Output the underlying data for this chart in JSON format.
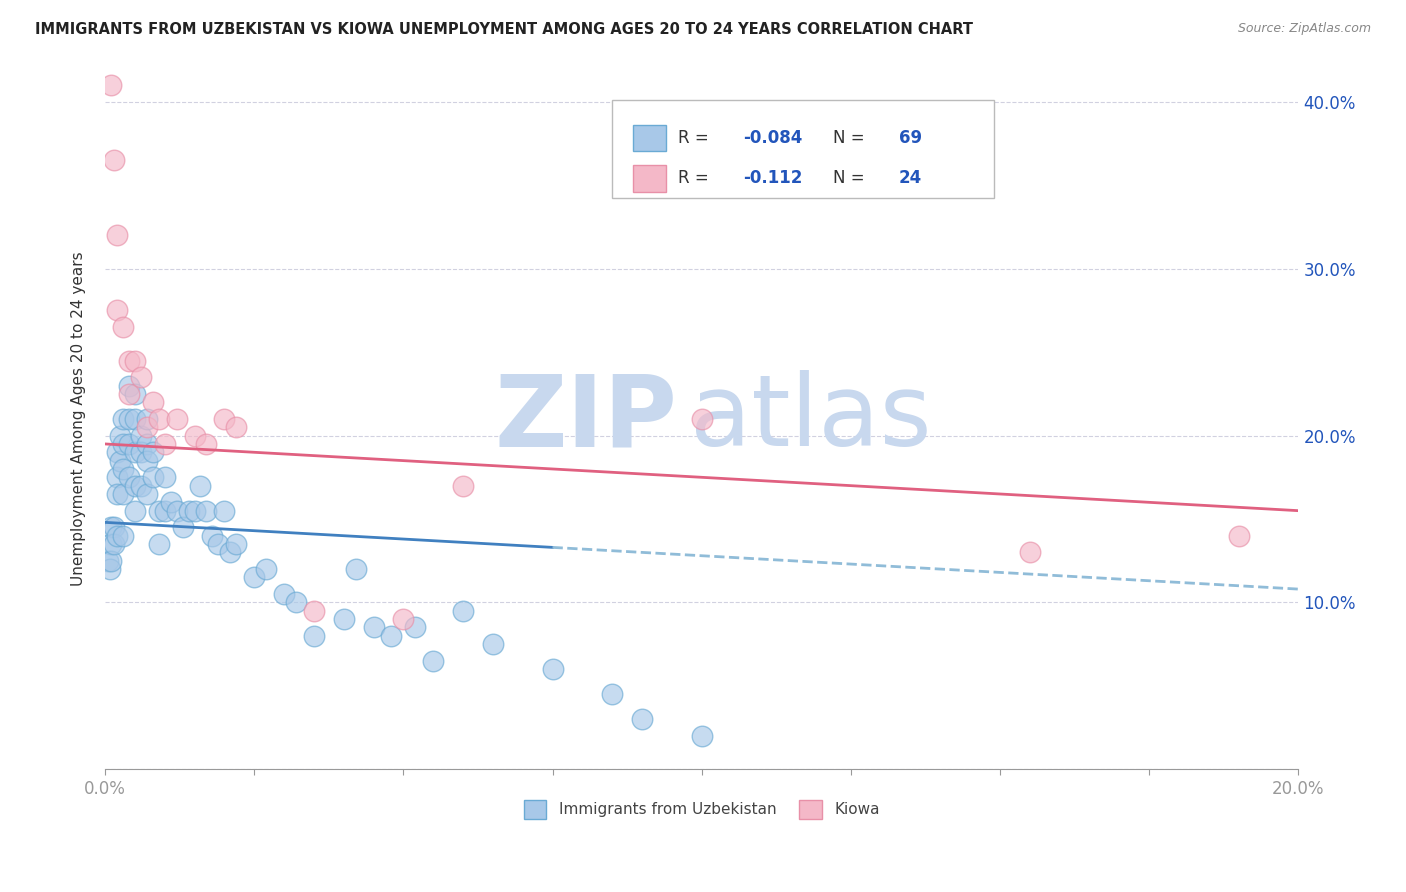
{
  "title": "IMMIGRANTS FROM UZBEKISTAN VS KIOWA UNEMPLOYMENT AMONG AGES 20 TO 24 YEARS CORRELATION CHART",
  "source": "Source: ZipAtlas.com",
  "ylabel": "Unemployment Among Ages 20 to 24 years",
  "xmin": 0.0,
  "xmax": 0.2,
  "ymin": 0.0,
  "ymax": 0.42,
  "yticks_right": [
    0.1,
    0.2,
    0.3,
    0.4
  ],
  "ytick_labels_right": [
    "10.0%",
    "20.0%",
    "30.0%",
    "40.0%"
  ],
  "series1_name": "Immigrants from Uzbekistan",
  "series1_color": "#a8c8e8",
  "series1_edge": "#6aaad4",
  "series1_R": -0.084,
  "series1_N": 69,
  "series2_name": "Kiowa",
  "series2_color": "#f4b8c8",
  "series2_edge": "#e890a8",
  "series2_R": -0.112,
  "series2_N": 24,
  "legend_color": "#2255bb",
  "watermark_zip": "ZIP",
  "watermark_atlas": "atlas",
  "watermark_color": "#c8d8ee",
  "background_color": "#ffffff",
  "grid_color": "#ccccdd",
  "uzbekistan_x": [
    0.0005,
    0.0008,
    0.001,
    0.001,
    0.001,
    0.0015,
    0.0015,
    0.002,
    0.002,
    0.002,
    0.002,
    0.0025,
    0.0025,
    0.003,
    0.003,
    0.003,
    0.003,
    0.003,
    0.004,
    0.004,
    0.004,
    0.004,
    0.005,
    0.005,
    0.005,
    0.005,
    0.005,
    0.006,
    0.006,
    0.006,
    0.007,
    0.007,
    0.007,
    0.007,
    0.008,
    0.008,
    0.009,
    0.009,
    0.01,
    0.01,
    0.011,
    0.012,
    0.013,
    0.014,
    0.015,
    0.016,
    0.017,
    0.018,
    0.019,
    0.02,
    0.021,
    0.022,
    0.025,
    0.027,
    0.03,
    0.032,
    0.035,
    0.04,
    0.042,
    0.045,
    0.048,
    0.052,
    0.055,
    0.06,
    0.065,
    0.075,
    0.085,
    0.09,
    0.1
  ],
  "uzbekistan_y": [
    0.125,
    0.12,
    0.145,
    0.135,
    0.125,
    0.145,
    0.135,
    0.19,
    0.175,
    0.165,
    0.14,
    0.2,
    0.185,
    0.21,
    0.195,
    0.18,
    0.165,
    0.14,
    0.23,
    0.21,
    0.195,
    0.175,
    0.225,
    0.21,
    0.19,
    0.17,
    0.155,
    0.2,
    0.19,
    0.17,
    0.21,
    0.195,
    0.185,
    0.165,
    0.19,
    0.175,
    0.155,
    0.135,
    0.175,
    0.155,
    0.16,
    0.155,
    0.145,
    0.155,
    0.155,
    0.17,
    0.155,
    0.14,
    0.135,
    0.155,
    0.13,
    0.135,
    0.115,
    0.12,
    0.105,
    0.1,
    0.08,
    0.09,
    0.12,
    0.085,
    0.08,
    0.085,
    0.065,
    0.095,
    0.075,
    0.06,
    0.045,
    0.03,
    0.02
  ],
  "kiowa_x": [
    0.001,
    0.0015,
    0.002,
    0.002,
    0.003,
    0.004,
    0.004,
    0.005,
    0.006,
    0.007,
    0.008,
    0.009,
    0.01,
    0.012,
    0.015,
    0.017,
    0.02,
    0.022,
    0.035,
    0.05,
    0.06,
    0.1,
    0.155,
    0.19
  ],
  "kiowa_y": [
    0.41,
    0.365,
    0.32,
    0.275,
    0.265,
    0.245,
    0.225,
    0.245,
    0.235,
    0.205,
    0.22,
    0.21,
    0.195,
    0.21,
    0.2,
    0.195,
    0.21,
    0.205,
    0.095,
    0.09,
    0.17,
    0.21,
    0.13,
    0.14
  ],
  "trendline_uzb_x0": 0.0,
  "trendline_uzb_y0": 0.148,
  "trendline_uzb_x1": 0.2,
  "trendline_uzb_y1": 0.108,
  "trendline_uzb_solid_x1": 0.075,
  "trendline_kiowa_x0": 0.0,
  "trendline_kiowa_y0": 0.195,
  "trendline_kiowa_x1": 0.2,
  "trendline_kiowa_y1": 0.155
}
